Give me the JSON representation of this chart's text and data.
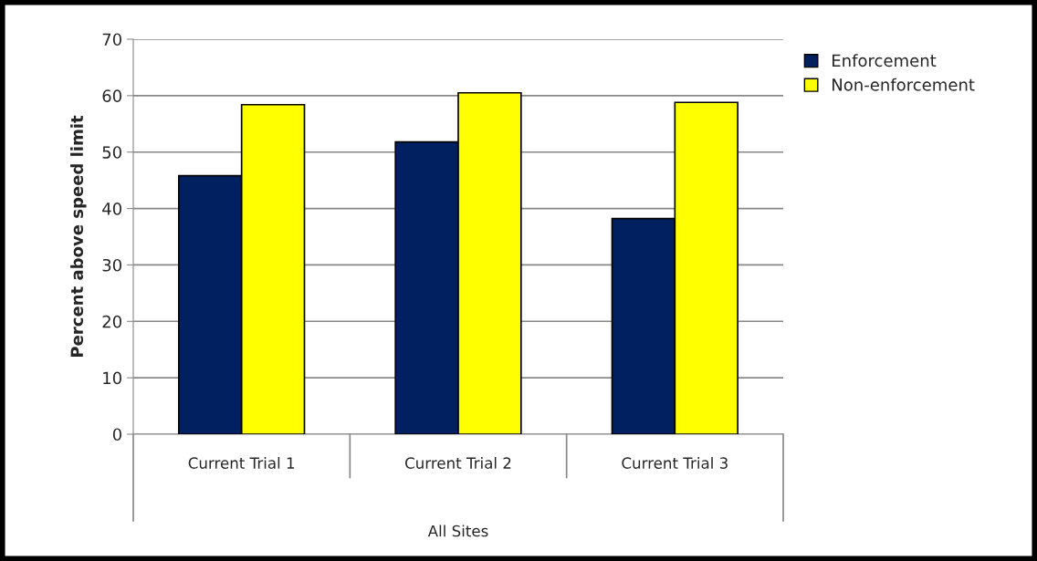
{
  "chart_data": {
    "type": "bar",
    "ylabel": "Percent above speed limit",
    "xlabel": "All Sites",
    "categories": [
      "Current Trial 1",
      "Current Trial 2",
      "Current Trial 3"
    ],
    "series": [
      {
        "name": "Enforcement",
        "color": "#002060",
        "values": [
          45.8,
          51.8,
          38.2
        ]
      },
      {
        "name": "Non-enforcement",
        "color": "#ffff00",
        "values": [
          58.4,
          60.5,
          58.8
        ]
      }
    ],
    "ylim": [
      0,
      70
    ],
    "yticks": [
      0,
      10,
      20,
      30,
      40,
      50,
      60,
      70
    ],
    "grid": "y",
    "legend": "top right"
  }
}
